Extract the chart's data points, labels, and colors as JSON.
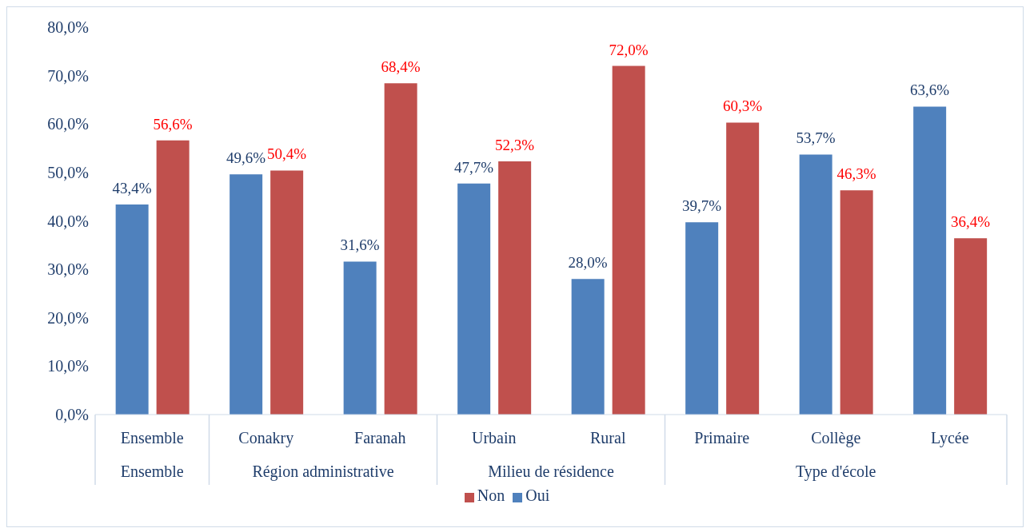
{
  "chart_data": {
    "type": "bar",
    "categories": [
      "Ensemble",
      "Conakry",
      "Faranah",
      "Urbain",
      "Rural",
      "Primaire",
      "Collège",
      "Lycée"
    ],
    "annotations": [
      "Ensemble",
      "Région administrative",
      "Milieu de résidence",
      "Type d'école"
    ],
    "series": [
      {
        "name": "Oui",
        "color": "#4f81bd",
        "values": [
          43.4,
          49.6,
          31.6,
          47.7,
          28.0,
          39.7,
          53.7,
          63.6
        ],
        "value_labels": [
          "43,4%",
          "49,6%",
          "31,6%",
          "47,7%",
          "28,0%",
          "39,7%",
          "53,7%",
          "63,6%"
        ]
      },
      {
        "name": "Non",
        "color": "#c0504d",
        "values": [
          56.6,
          50.4,
          68.4,
          52.3,
          72.0,
          60.3,
          46.3,
          36.4
        ],
        "value_labels": [
          "56,6%",
          "50,4%",
          "68,4%",
          "52,3%",
          "72,0%",
          "60,3%",
          "46,3%",
          "36,4%"
        ]
      }
    ],
    "ylim": [
      0,
      80
    ],
    "yticks": [
      {
        "value": 0,
        "label": "0,0%"
      },
      {
        "value": 10,
        "label": "10,0%"
      },
      {
        "value": 20,
        "label": "20,0%"
      },
      {
        "value": 30,
        "label": "30,0%"
      },
      {
        "value": 40,
        "label": "40,0%"
      },
      {
        "value": 50,
        "label": "50,0%"
      },
      {
        "value": 60,
        "label": "60,0%"
      },
      {
        "value": 70,
        "label": "70,0%"
      },
      {
        "value": 80,
        "label": "80,0%"
      }
    ],
    "grid": false,
    "legend": "bottom"
  }
}
